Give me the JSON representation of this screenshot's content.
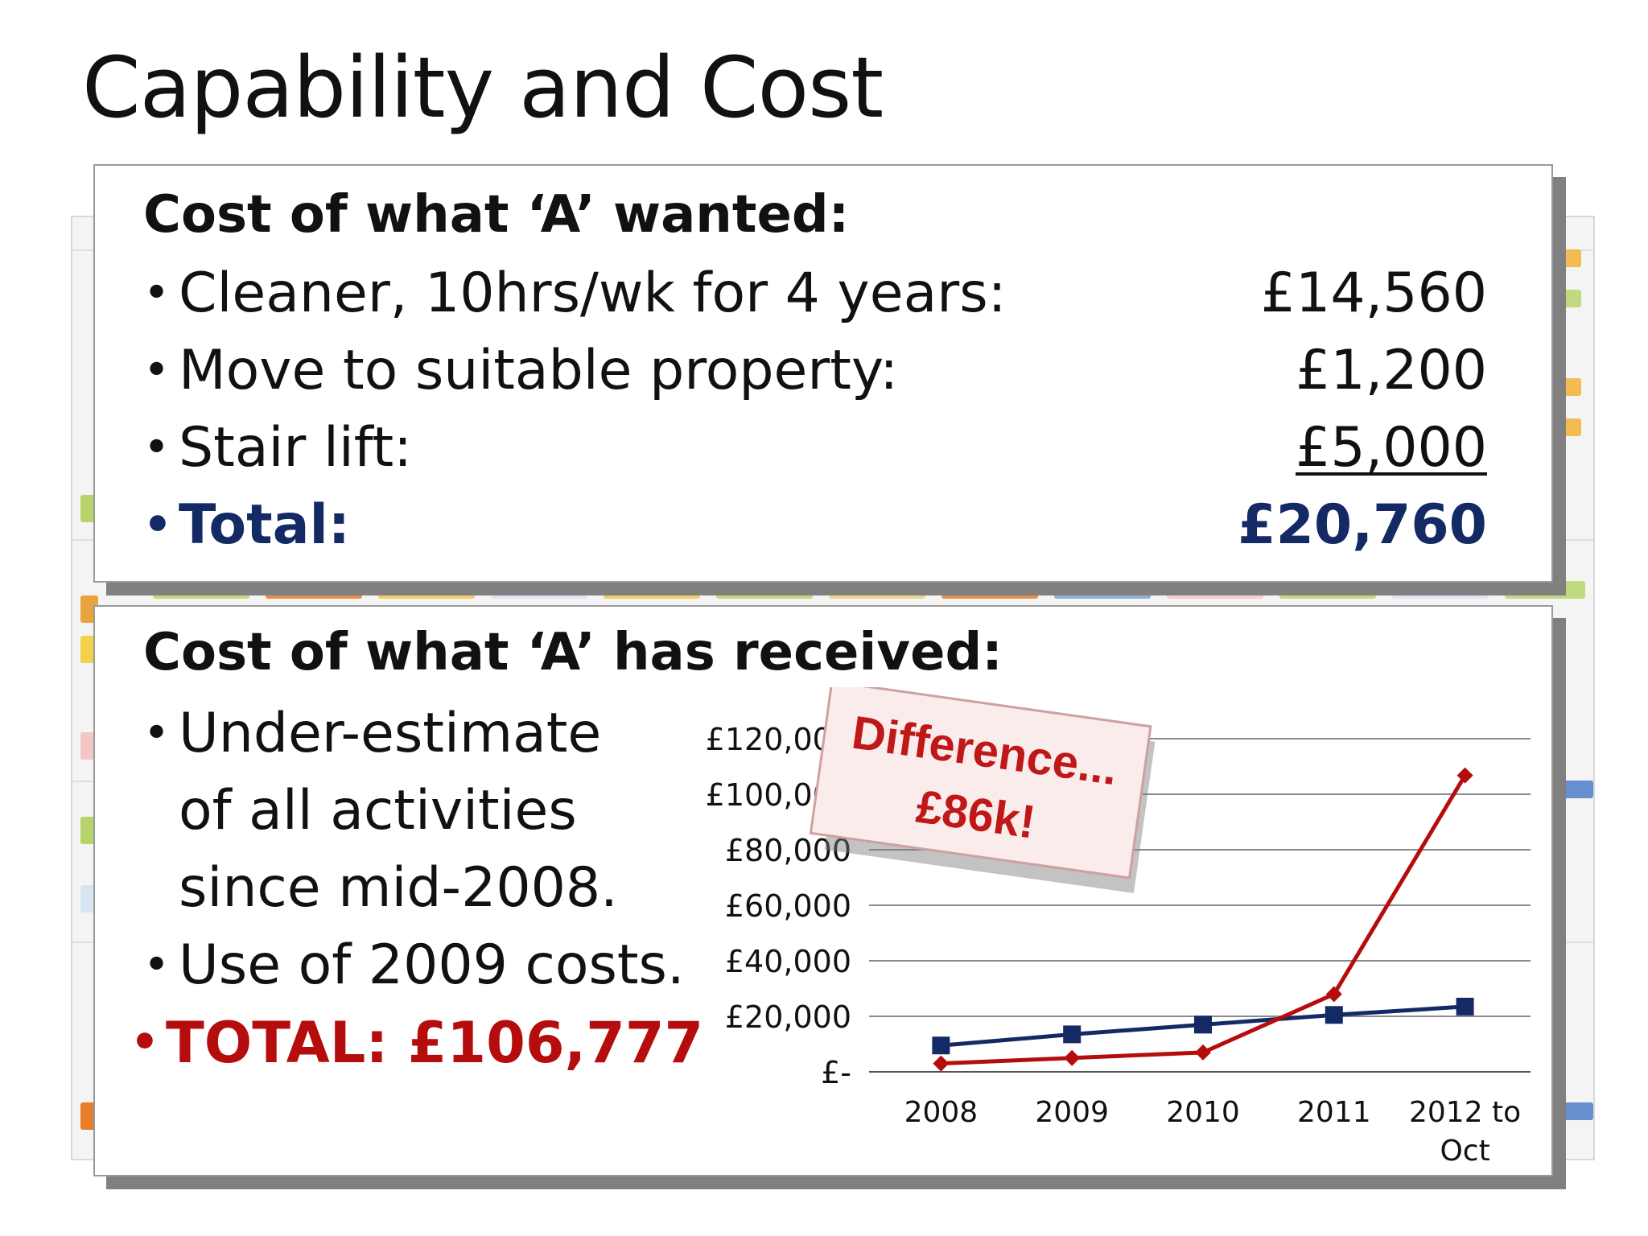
{
  "title": "Capability and Cost",
  "wanted": {
    "heading": "Cost of what ‘A’ wanted:",
    "items": [
      {
        "label": "Cleaner, 10hrs/wk for 4 years:",
        "amount": "£14,560"
      },
      {
        "label": "Move to suitable property:",
        "amount": "£1,200"
      },
      {
        "label": "Stair lift:",
        "amount": "£5,000"
      }
    ],
    "total_label": "Total:",
    "total_amount": "£20,760"
  },
  "received": {
    "heading": "Cost of what ‘A’ has received:",
    "bullets": [
      {
        "lines": [
          "Under-estimate",
          "of all activities",
          "since mid-2008."
        ]
      },
      {
        "lines": [
          "Use of 2009 costs."
        ]
      }
    ],
    "total": "TOTAL: £106,777"
  },
  "callout": {
    "line1": "Difference...",
    "line2": "£86k!"
  },
  "colors": {
    "navy": "#142a64",
    "red": "#b50d0d"
  },
  "chart_data": {
    "type": "line",
    "categories": [
      "2008",
      "2009",
      "2010",
      "2011",
      "2012 to Oct"
    ],
    "y_tick_labels": [
      "£-",
      "£20,000",
      "£40,000",
      "£60,000",
      "£80,000",
      "£100,000",
      "£120,000"
    ],
    "ylim": [
      0,
      120000
    ],
    "grid": true,
    "series": [
      {
        "color": "#142a64",
        "marker": "square",
        "values": [
          9500,
          13500,
          17000,
          20500,
          23500
        ]
      },
      {
        "color": "#b50d0d",
        "marker": "diamond",
        "values": [
          3000,
          5000,
          7000,
          28000,
          106777
        ]
      }
    ]
  }
}
